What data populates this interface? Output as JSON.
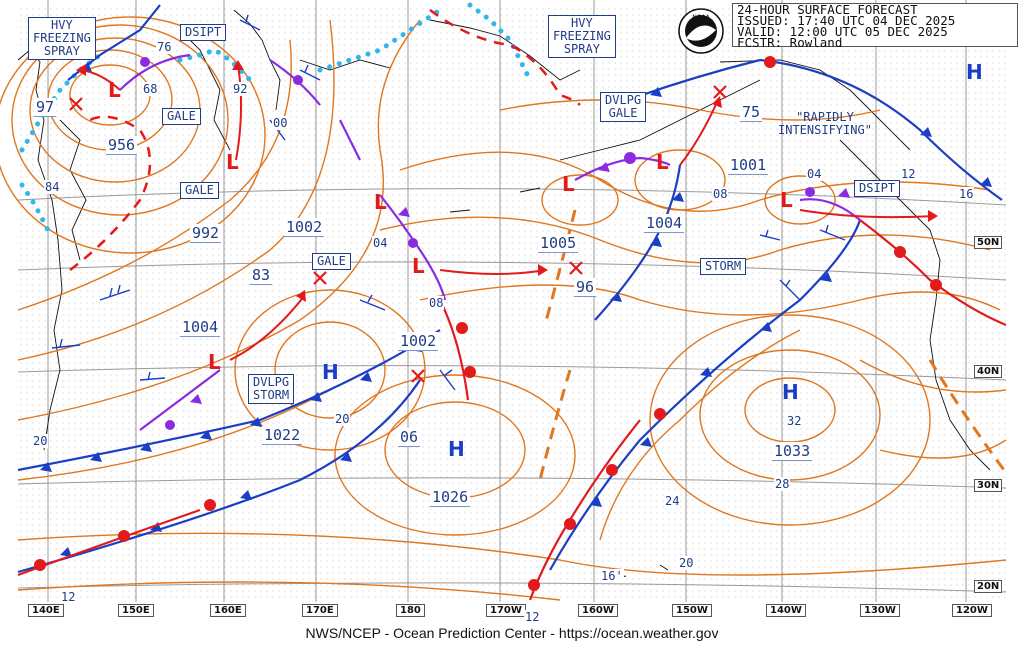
{
  "header": {
    "line1": "24-HOUR SURFACE FORECAST",
    "line2": "ISSUED: 17:40 UTC 04 DEC 2025",
    "line3": "VALID:  12:00 UTC 05 DEC 2025",
    "line4": "FCSTR:  Rowland"
  },
  "credit": "NWS/NCEP - Ocean Prediction Center - https://ocean.weather.gov",
  "logo_text": "NOAA",
  "longitudes": [
    "140E",
    "150E",
    "160E",
    "170E",
    "180",
    "170W",
    "160W",
    "150W",
    "140W",
    "130W",
    "120W"
  ],
  "latitudes": [
    "50N",
    "40N",
    "30N",
    "20N"
  ],
  "warnings": {
    "hvy_spray_w": [
      "HVY",
      "FREEZING",
      "SPRAY"
    ],
    "hvy_spray_e": [
      "HVY",
      "FREEZING",
      "SPRAY"
    ],
    "dsipt_w": "DSIPT",
    "dsipt_e": "DSIPT",
    "gale_1": "GALE",
    "gale_2": "GALE",
    "gale_3": "GALE",
    "dvlpg_gale": [
      "DVLPG",
      "GALE"
    ],
    "dvlpg_storm": [
      "DVLPG",
      "STORM"
    ],
    "storm": "STORM",
    "rapidly": [
      "\"RAPIDLY",
      "INTENSIFYING\""
    ]
  },
  "pressures": {
    "p956": "956",
    "p992": "992",
    "p1002a": "1002",
    "p83": "83",
    "p1004a": "1004",
    "p1022": "1022",
    "p1002b": "1002",
    "p06": "06",
    "p1026": "1026",
    "p1005": "1005",
    "p96": "96",
    "p1004b": "1004",
    "p1001": "1001",
    "p75": "75",
    "p1033": "1033",
    "p97": "97"
  },
  "iso_labels": {
    "i76": "76",
    "i68": "68",
    "i92": "92",
    "i00": "00",
    "i84": "84",
    "i04a": "04",
    "i08a": "08",
    "i20a": "20",
    "i20b": "20",
    "i08b": "08",
    "i04b": "04",
    "i12a": "12",
    "i16a": "16",
    "i32": "32",
    "i28": "28",
    "i24": "24",
    "i20c": "20",
    "i16b": "16'",
    "i12b": "12",
    "i12c": "12"
  },
  "centers": {
    "H": "H",
    "L": "L"
  }
}
